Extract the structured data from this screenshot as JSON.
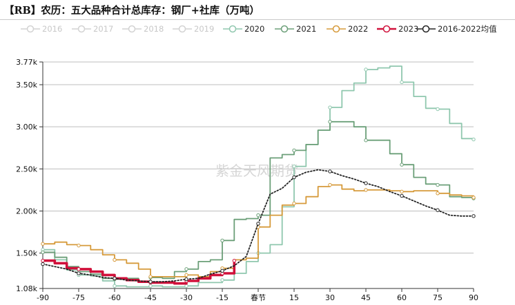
{
  "chart_data": {
    "type": "line",
    "title": "【RB】农历：五大品种合计总库存：钢厂+社库（万吨）",
    "watermark": "紫金天风期货",
    "xlabel": "",
    "ylabel": "",
    "xlim": [
      -90,
      90
    ],
    "ylim": [
      1080,
      3770
    ],
    "y_ticks": [
      {
        "value": 3770,
        "label": "3.77k"
      },
      {
        "value": 3500,
        "label": "3.50k"
      },
      {
        "value": 3000,
        "label": "3.00k"
      },
      {
        "value": 2500,
        "label": "2.50k"
      },
      {
        "value": 2000,
        "label": "2.00k"
      },
      {
        "value": 1500,
        "label": "1.50k"
      },
      {
        "value": 1080,
        "label": "1.08k"
      }
    ],
    "x_ticks": [
      {
        "value": -90,
        "label": "-90"
      },
      {
        "value": -75,
        "label": "-75"
      },
      {
        "value": -60,
        "label": "-60"
      },
      {
        "value": -45,
        "label": "-45"
      },
      {
        "value": -30,
        "label": "-30"
      },
      {
        "value": -15,
        "label": "-15"
      },
      {
        "value": 0,
        "label": "春节"
      },
      {
        "value": 15,
        "label": "15"
      },
      {
        "value": 30,
        "label": "30"
      },
      {
        "value": 45,
        "label": "45"
      },
      {
        "value": 60,
        "label": "60"
      },
      {
        "value": 75,
        "label": "75"
      },
      {
        "value": 90,
        "label": "90"
      }
    ],
    "legend_position": "top",
    "grid": true,
    "series": [
      {
        "name": "2016",
        "color": "#d2d2d2",
        "inactive": true,
        "step": false,
        "x": [],
        "y": []
      },
      {
        "name": "2017",
        "color": "#d2d2d2",
        "inactive": true,
        "step": false,
        "x": [],
        "y": []
      },
      {
        "name": "2018",
        "color": "#d2d2d2",
        "inactive": true,
        "step": false,
        "x": [],
        "y": []
      },
      {
        "name": "2019",
        "color": "#d2d2d2",
        "inactive": true,
        "step": false,
        "x": [],
        "y": []
      },
      {
        "name": "2020",
        "color": "#8fc7ae",
        "inactive": false,
        "step": true,
        "width": 1.8,
        "x": [
          -90,
          -85,
          -80,
          -75,
          -70,
          -65,
          -60,
          -55,
          -50,
          -45,
          -40,
          -35,
          -30,
          -25,
          -20,
          -15,
          -10,
          -5,
          0,
          5,
          10,
          15,
          20,
          25,
          30,
          35,
          40,
          45,
          50,
          55,
          60,
          65,
          70,
          75,
          80,
          85,
          90
        ],
        "y": [
          1540,
          1420,
          1300,
          1240,
          1230,
          1170,
          1110,
          1100,
          1100,
          1110,
          1100,
          1100,
          1110,
          1150,
          1150,
          1180,
          1260,
          1400,
          1500,
          1600,
          2050,
          2530,
          2790,
          2960,
          3230,
          3430,
          3520,
          3680,
          3700,
          3720,
          3530,
          3360,
          3220,
          3210,
          3040,
          2860,
          2850
        ]
      },
      {
        "name": "2021",
        "color": "#6b9f78",
        "inactive": false,
        "step": true,
        "width": 1.8,
        "x": [
          -90,
          -85,
          -80,
          -75,
          -70,
          -65,
          -60,
          -55,
          -50,
          -45,
          -40,
          -35,
          -30,
          -25,
          -20,
          -15,
          -10,
          -5,
          0,
          5,
          10,
          15,
          20,
          25,
          30,
          35,
          40,
          45,
          50,
          55,
          60,
          65,
          70,
          75,
          80,
          85,
          90
        ],
        "y": [
          1510,
          1450,
          1340,
          1280,
          1250,
          1200,
          1190,
          1200,
          1160,
          1210,
          1200,
          1280,
          1310,
          1400,
          1420,
          1650,
          1900,
          1910,
          1950,
          2630,
          2670,
          2720,
          2790,
          2960,
          3060,
          3060,
          3000,
          2840,
          2840,
          2680,
          2550,
          2400,
          2320,
          2310,
          2170,
          2160,
          2150
        ]
      },
      {
        "name": "2022",
        "color": "#d69a3a",
        "inactive": false,
        "step": true,
        "width": 1.8,
        "x": [
          -90,
          -85,
          -80,
          -75,
          -70,
          -65,
          -60,
          -55,
          -50,
          -45,
          -40,
          -35,
          -30,
          -25,
          -20,
          -15,
          -10,
          -5,
          0,
          5,
          10,
          15,
          20,
          25,
          30,
          35,
          40,
          45,
          50,
          55,
          60,
          65,
          70,
          75,
          80,
          85,
          90
        ],
        "y": [
          1610,
          1630,
          1600,
          1590,
          1540,
          1480,
          1420,
          1380,
          1310,
          1220,
          1220,
          1220,
          1240,
          1220,
          1280,
          1320,
          1420,
          1440,
          1810,
          1950,
          2070,
          2090,
          2170,
          2290,
          2310,
          2260,
          2240,
          2250,
          2250,
          2240,
          2230,
          2240,
          2240,
          2210,
          2190,
          2180,
          2160
        ]
      },
      {
        "name": "2023",
        "color": "#d0103a",
        "inactive": false,
        "step": true,
        "width": 3.6,
        "x": [
          -90,
          -85,
          -80,
          -75,
          -70,
          -65,
          -60,
          -55,
          -50,
          -45,
          -40,
          -35,
          -30,
          -25,
          -20,
          -15,
          -10
        ],
        "y": [
          1410,
          1380,
          1320,
          1310,
          1280,
          1240,
          1200,
          1180,
          1160,
          1150,
          1150,
          1140,
          1170,
          1200,
          1240,
          1260,
          1410
        ]
      },
      {
        "name": "2016-2022均值",
        "color": "#222222",
        "inactive": false,
        "step": false,
        "dotted": true,
        "width": 1.8,
        "x": [
          -90,
          -85,
          -80,
          -75,
          -70,
          -65,
          -60,
          -55,
          -50,
          -45,
          -40,
          -35,
          -30,
          -25,
          -20,
          -15,
          -10,
          -5,
          0,
          5,
          10,
          15,
          20,
          25,
          30,
          35,
          40,
          45,
          50,
          55,
          60,
          65,
          70,
          75,
          80,
          85,
          90
        ],
        "y": [
          1370,
          1340,
          1310,
          1260,
          1240,
          1210,
          1200,
          1180,
          1170,
          1160,
          1160,
          1170,
          1190,
          1200,
          1250,
          1290,
          1350,
          1460,
          1850,
          2200,
          2270,
          2400,
          2460,
          2490,
          2470,
          2420,
          2380,
          2330,
          2290,
          2230,
          2180,
          2120,
          2060,
          2010,
          1950,
          1940,
          1940
        ]
      }
    ]
  }
}
